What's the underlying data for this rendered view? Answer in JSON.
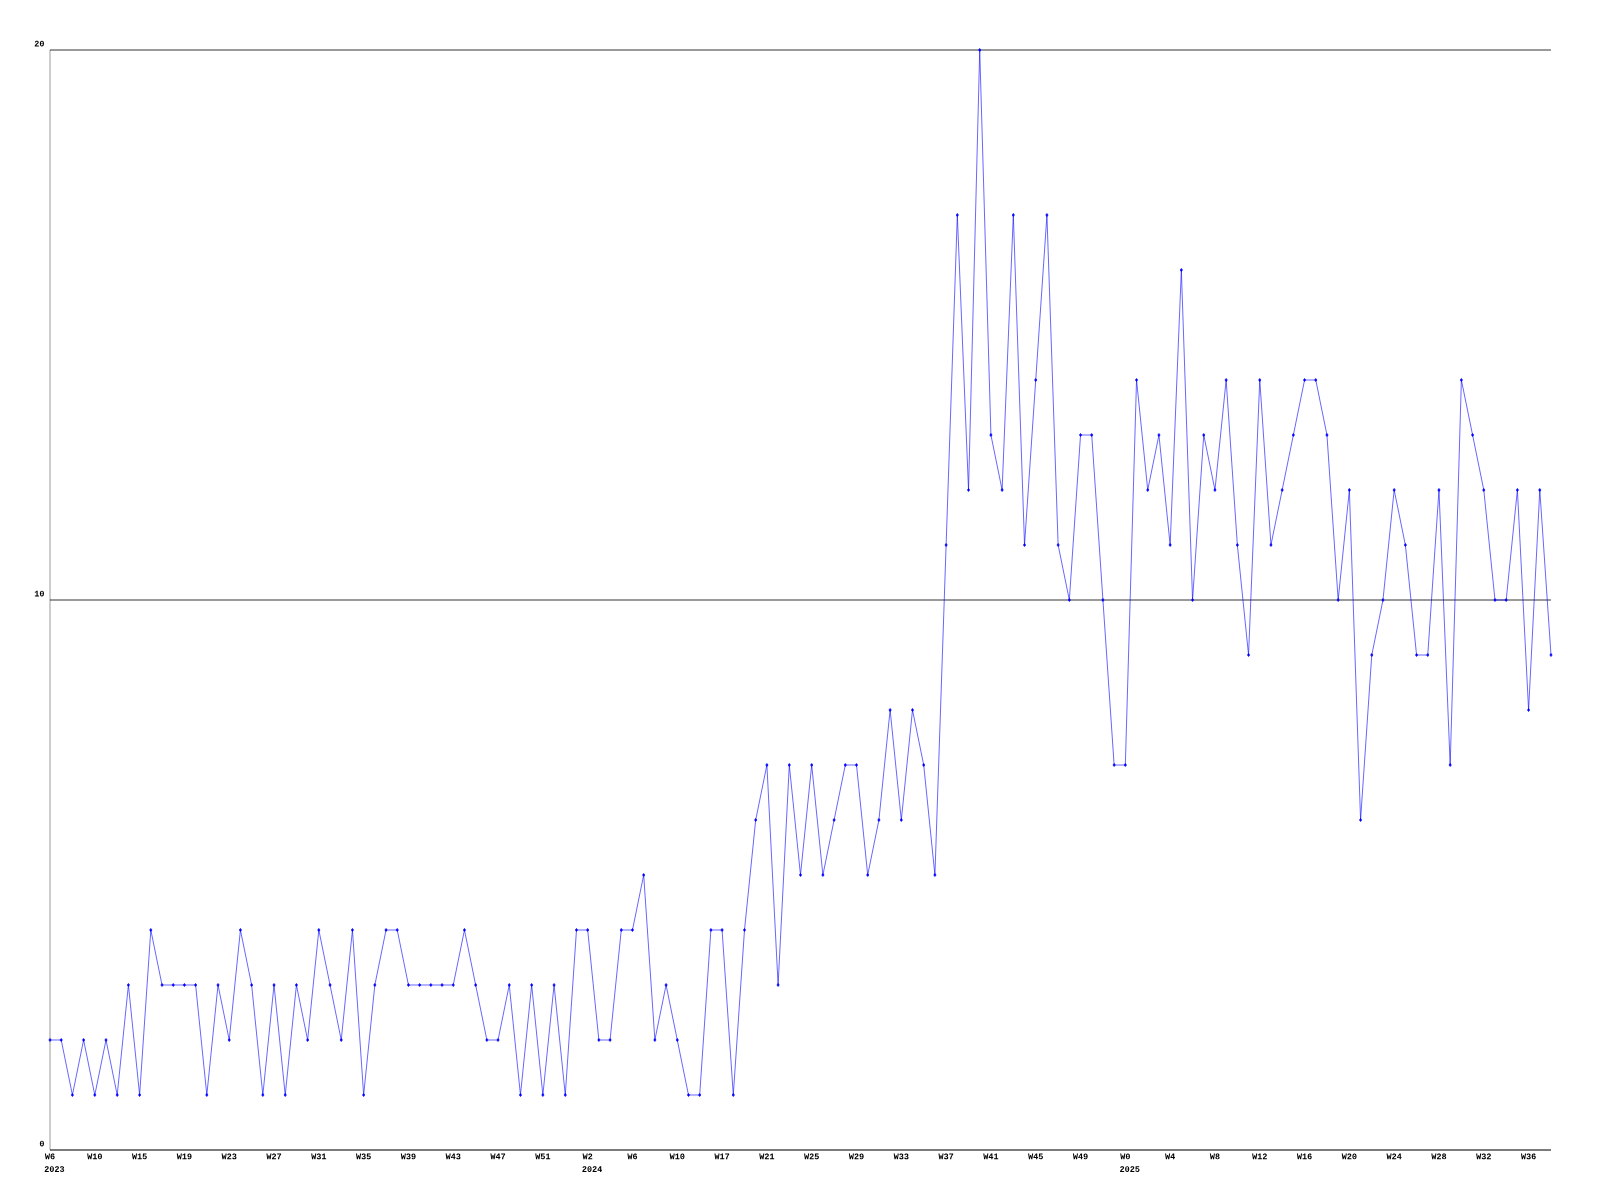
{
  "chart_data": {
    "type": "line",
    "color": "#0000ff",
    "marker": "diamond",
    "grid": "y",
    "ylim": [
      0,
      20
    ],
    "yticks": [
      0,
      10,
      20
    ],
    "categories": [
      "W6",
      null,
      null,
      null,
      "W10",
      null,
      null,
      null,
      "W15",
      null,
      null,
      null,
      "W19",
      null,
      null,
      null,
      "W23",
      null,
      null,
      null,
      "W27",
      null,
      null,
      null,
      "W31",
      null,
      null,
      null,
      "W35",
      null,
      null,
      null,
      "W39",
      null,
      null,
      null,
      "W43",
      null,
      null,
      null,
      "W47",
      null,
      null,
      null,
      "W51",
      null,
      null,
      null,
      "W2",
      null,
      null,
      null,
      "W6",
      null,
      null,
      null,
      "W10",
      null,
      null,
      null,
      "W17",
      null,
      null,
      null,
      "W21",
      null,
      null,
      null,
      "W25",
      null,
      null,
      null,
      "W29",
      null,
      null,
      null,
      "W33",
      null,
      null,
      null,
      "W37",
      null,
      null,
      null,
      "W41",
      null,
      null,
      null,
      "W45",
      null,
      null,
      null,
      "W49",
      null,
      null,
      null,
      "W0",
      null,
      null,
      null,
      "W4",
      null,
      null,
      null,
      "W8",
      null,
      null,
      null,
      "W12",
      null,
      null,
      null,
      "W16",
      null,
      null,
      null,
      "W20",
      null,
      null,
      null,
      "W24",
      null,
      null,
      null,
      "W28",
      null,
      null,
      null,
      "W32",
      null,
      null,
      null,
      "W36",
      null,
      null
    ],
    "values": [
      2,
      2,
      1,
      2,
      1,
      2,
      1,
      3,
      1,
      4,
      3,
      3,
      3,
      3,
      1,
      3,
      2,
      4,
      3,
      1,
      3,
      1,
      3,
      2,
      4,
      3,
      2,
      4,
      1,
      3,
      4,
      4,
      3,
      3,
      3,
      3,
      3,
      4,
      3,
      2,
      2,
      3,
      1,
      3,
      1,
      3,
      1,
      4,
      4,
      2,
      2,
      4,
      4,
      5,
      2,
      3,
      2,
      1,
      1,
      4,
      4,
      1,
      4,
      6,
      7,
      3,
      7,
      5,
      7,
      5,
      6,
      7,
      7,
      5,
      6,
      8,
      6,
      8,
      7,
      5,
      11,
      17,
      12,
      20,
      13,
      12,
      17,
      11,
      14,
      17,
      11,
      10,
      13,
      13,
      10,
      7,
      7,
      14,
      12,
      13,
      11,
      16,
      10,
      13,
      12,
      14,
      11,
      9,
      14,
      11,
      12,
      13,
      14,
      14,
      13,
      10,
      12,
      6,
      9,
      10,
      12,
      11,
      9,
      9,
      12,
      7,
      14,
      13,
      12,
      10,
      10,
      12,
      8,
      12,
      9
    ],
    "annotations": [
      "2023",
      "2024",
      "2025"
    ]
  }
}
